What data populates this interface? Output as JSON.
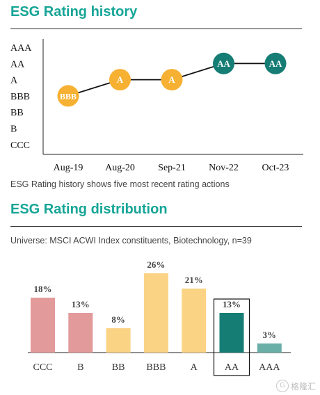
{
  "history": {
    "title": "ESG Rating history",
    "caption": "ESG Rating history shows five most recent rating actions"
  },
  "distribution": {
    "title": "ESG Rating distribution",
    "caption": "Universe: MSCI ACWI Index constituents, Biotechnology, n=39"
  },
  "watermark": {
    "text": "格隆汇",
    "logo": "G"
  },
  "colors": {
    "accent": "#16a597",
    "laggard": "#e39a9a",
    "average": "#fbd385",
    "leader": "#167d75",
    "leader_light": "#6aaea8",
    "orange": "#f6b132"
  },
  "chart_data": [
    {
      "type": "line",
      "title": "ESG Rating history",
      "y_levels": [
        "AAA",
        "AA",
        "A",
        "BBB",
        "BB",
        "B",
        "CCC"
      ],
      "x": [
        "Aug-19",
        "Aug-20",
        "Sep-21",
        "Nov-22",
        "Oct-23"
      ],
      "series": [
        {
          "values": [
            "BBB",
            "A",
            "A",
            "AA",
            "AA"
          ]
        }
      ],
      "marker_colors": [
        "#f6b132",
        "#f6b132",
        "#f6b132",
        "#167d75",
        "#167d75"
      ],
      "grid": false
    },
    {
      "type": "bar",
      "title": "ESG Rating distribution",
      "categories": [
        "CCC",
        "B",
        "BB",
        "BBB",
        "A",
        "AA",
        "AAA"
      ],
      "values": [
        18,
        13,
        8,
        26,
        21,
        13,
        3
      ],
      "value_labels": [
        "18%",
        "13%",
        "8%",
        "26%",
        "21%",
        "13%",
        "3%"
      ],
      "bar_colors": [
        "#e39a9a",
        "#e39a9a",
        "#fbd385",
        "#fbd385",
        "#fbd385",
        "#167d75",
        "#6aaea8"
      ],
      "highlighted_category": "AA",
      "ylim": [
        0,
        26
      ],
      "grid": false
    }
  ]
}
